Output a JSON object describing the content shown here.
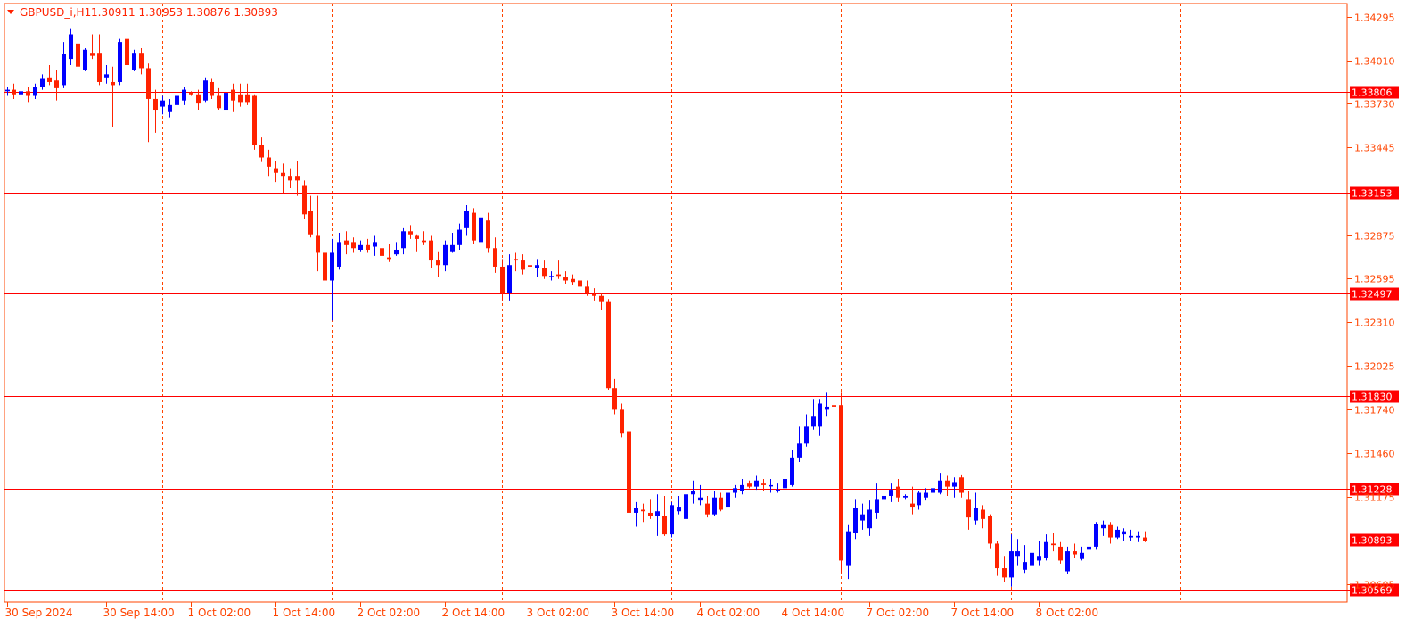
{
  "header": {
    "symbol_label": "GBPUSD_i,H1",
    "ohlc_label": "1.30911 1.30953 1.30876 1.30893"
  },
  "colors": {
    "bull": "#0000ff",
    "bear": "#ff2200",
    "level_line": "#ff0000",
    "grid": "#ff4400",
    "frame": "#ff4400",
    "axis_text": "#ff4400",
    "label_bg": "#ff0000",
    "label_text": "#ffffff"
  },
  "chart_data": {
    "type": "candlestick",
    "symbol": "GBPUSD_i",
    "timeframe": "H1",
    "ylim": [
      1.3049,
      1.3438
    ],
    "y_ticks": [
      "1.34295",
      "1.34010",
      "1.33730",
      "1.33445",
      "1.32875",
      "1.32595",
      "1.32310",
      "1.32025",
      "1.31740",
      "1.31460",
      "1.31175",
      "1.30605"
    ],
    "y_tick_values": [
      1.34295,
      1.3401,
      1.3373,
      1.33445,
      1.32875,
      1.32595,
      1.3231,
      1.32025,
      1.3174,
      1.3146,
      1.31175,
      1.30605
    ],
    "x_ticks": [
      {
        "label": "30 Sep 2024",
        "index": 0
      },
      {
        "label": "30 Sep 14:00",
        "index": 14
      },
      {
        "label": "1 Oct 02:00",
        "index": 26
      },
      {
        "label": "1 Oct 14:00",
        "index": 38
      },
      {
        "label": "2 Oct 02:00",
        "index": 50
      },
      {
        "label": "2 Oct 14:00",
        "index": 62
      },
      {
        "label": "3 Oct 02:00",
        "index": 74
      },
      {
        "label": "3 Oct 14:00",
        "index": 86
      },
      {
        "label": "4 Oct 02:00",
        "index": 98
      },
      {
        "label": "4 Oct 14:00",
        "index": 110
      },
      {
        "label": "7 Oct 02:00",
        "index": 122
      },
      {
        "label": "7 Oct 14:00",
        "index": 134
      },
      {
        "label": "8 Oct 02:00",
        "index": 146
      }
    ],
    "vertical_grid_indices": [
      22,
      46,
      70,
      94,
      118,
      142,
      166
    ],
    "levels": [
      {
        "value": 1.33806,
        "label": "1.33806"
      },
      {
        "value": 1.33153,
        "label": "1.33153"
      },
      {
        "value": 1.32497,
        "label": "1.32497"
      },
      {
        "value": 1.3183,
        "label": "1.31830"
      },
      {
        "value": 1.31228,
        "label": "1.31228"
      },
      {
        "value": 1.30569,
        "label": "1.30569"
      }
    ],
    "current_price": {
      "value": 1.30893,
      "label": "1.30893"
    },
    "candles": [
      [
        1.3381,
        1.3384,
        1.3378,
        1.3382
      ],
      [
        1.3382,
        1.3386,
        1.3376,
        1.3379
      ],
      [
        1.3379,
        1.3389,
        1.3377,
        1.3381
      ],
      [
        1.3381,
        1.3384,
        1.3374,
        1.3378
      ],
      [
        1.3378,
        1.3386,
        1.3376,
        1.3384
      ],
      [
        1.3384,
        1.3392,
        1.3382,
        1.3389
      ],
      [
        1.339,
        1.3398,
        1.3385,
        1.3387
      ],
      [
        1.3388,
        1.3395,
        1.3375,
        1.3383
      ],
      [
        1.3385,
        1.3413,
        1.3383,
        1.3405
      ],
      [
        1.3402,
        1.3422,
        1.3398,
        1.3418
      ],
      [
        1.3412,
        1.3417,
        1.3395,
        1.3397
      ],
      [
        1.3395,
        1.3409,
        1.3394,
        1.3408
      ],
      [
        1.3406,
        1.3418,
        1.3402,
        1.3404
      ],
      [
        1.3406,
        1.3418,
        1.3385,
        1.3387
      ],
      [
        1.339,
        1.3398,
        1.3386,
        1.3392
      ],
      [
        1.3387,
        1.3397,
        1.3358,
        1.3385
      ],
      [
        1.3387,
        1.3415,
        1.3385,
        1.3413
      ],
      [
        1.3415,
        1.3417,
        1.3389,
        1.3398
      ],
      [
        1.3395,
        1.3408,
        1.3394,
        1.3406
      ],
      [
        1.3406,
        1.3409,
        1.3392,
        1.3396
      ],
      [
        1.3396,
        1.3399,
        1.3348,
        1.3376
      ],
      [
        1.3376,
        1.3382,
        1.3354,
        1.3369
      ],
      [
        1.3371,
        1.3378,
        1.3366,
        1.3375
      ],
      [
        1.3368,
        1.3376,
        1.3364,
        1.3372
      ],
      [
        1.3372,
        1.3382,
        1.3371,
        1.3378
      ],
      [
        1.3375,
        1.3384,
        1.3372,
        1.3382
      ],
      [
        1.338,
        1.3381,
        1.3378,
        1.3379
      ],
      [
        1.3379,
        1.3382,
        1.3369,
        1.3373
      ],
      [
        1.3375,
        1.339,
        1.3374,
        1.3388
      ],
      [
        1.3387,
        1.3389,
        1.3376,
        1.3378
      ],
      [
        1.3378,
        1.3383,
        1.3369,
        1.337
      ],
      [
        1.3369,
        1.3384,
        1.3368,
        1.338
      ],
      [
        1.3382,
        1.3386,
        1.3368,
        1.3375
      ],
      [
        1.3379,
        1.3386,
        1.3371,
        1.3374
      ],
      [
        1.3379,
        1.3386,
        1.3372,
        1.3374
      ],
      [
        1.3378,
        1.3379,
        1.3343,
        1.3346
      ],
      [
        1.3346,
        1.3351,
        1.3335,
        1.3338
      ],
      [
        1.3338,
        1.3343,
        1.3326,
        1.3332
      ],
      [
        1.3331,
        1.3336,
        1.3322,
        1.3328
      ],
      [
        1.3328,
        1.3334,
        1.3315,
        1.3326
      ],
      [
        1.3326,
        1.3331,
        1.3318,
        1.3323
      ],
      [
        1.3326,
        1.3336,
        1.3313,
        1.3323
      ],
      [
        1.332,
        1.3323,
        1.3298,
        1.3301
      ],
      [
        1.3303,
        1.3313,
        1.3286,
        1.3288
      ],
      [
        1.3287,
        1.3313,
        1.3264,
        1.3276
      ],
      [
        1.3276,
        1.3283,
        1.3241,
        1.3258
      ],
      [
        1.3258,
        1.3285,
        1.3232,
        1.3276
      ],
      [
        1.3267,
        1.3289,
        1.3265,
        1.3283
      ],
      [
        1.3284,
        1.329,
        1.3275,
        1.3281
      ],
      [
        1.3283,
        1.3286,
        1.3276,
        1.3279
      ],
      [
        1.3278,
        1.3284,
        1.3277,
        1.3281
      ],
      [
        1.3281,
        1.3285,
        1.3276,
        1.3278
      ],
      [
        1.328,
        1.3287,
        1.3274,
        1.3283
      ],
      [
        1.3279,
        1.3286,
        1.3273,
        1.3274
      ],
      [
        1.3273,
        1.3282,
        1.327,
        1.3272
      ],
      [
        1.3275,
        1.3283,
        1.3274,
        1.3278
      ],
      [
        1.3279,
        1.3292,
        1.3275,
        1.329
      ],
      [
        1.329,
        1.3294,
        1.3285,
        1.3288
      ],
      [
        1.3287,
        1.3288,
        1.3277,
        1.3285
      ],
      [
        1.3284,
        1.329,
        1.3281,
        1.3283
      ],
      [
        1.3284,
        1.3287,
        1.3266,
        1.3271
      ],
      [
        1.3271,
        1.3277,
        1.326,
        1.3268
      ],
      [
        1.3268,
        1.3284,
        1.3264,
        1.3281
      ],
      [
        1.3277,
        1.3289,
        1.3276,
        1.3281
      ],
      [
        1.3281,
        1.3295,
        1.3278,
        1.3291
      ],
      [
        1.3292,
        1.3307,
        1.3287,
        1.3303
      ],
      [
        1.3302,
        1.3305,
        1.3282,
        1.3284
      ],
      [
        1.3283,
        1.3303,
        1.328,
        1.3299
      ],
      [
        1.3297,
        1.3302,
        1.3276,
        1.3279
      ],
      [
        1.3279,
        1.3286,
        1.3263,
        1.3267
      ],
      [
        1.3267,
        1.3272,
        1.3245,
        1.325
      ],
      [
        1.325,
        1.3275,
        1.3245,
        1.3268
      ],
      [
        1.3272,
        1.3276,
        1.3264,
        1.3271
      ],
      [
        1.3271,
        1.3275,
        1.3262,
        1.3265
      ],
      [
        1.3268,
        1.327,
        1.3257,
        1.3267
      ],
      [
        1.3266,
        1.3272,
        1.326,
        1.3268
      ],
      [
        1.3266,
        1.3271,
        1.3259,
        1.3261
      ],
      [
        1.3261,
        1.3264,
        1.3258,
        1.3261
      ],
      [
        1.3262,
        1.3271,
        1.3259,
        1.3261
      ],
      [
        1.326,
        1.3264,
        1.3256,
        1.3258
      ],
      [
        1.3259,
        1.3262,
        1.3255,
        1.3257
      ],
      [
        1.3258,
        1.3263,
        1.3252,
        1.3254
      ],
      [
        1.3254,
        1.3258,
        1.3248,
        1.325
      ],
      [
        1.3249,
        1.3253,
        1.3245,
        1.3248
      ],
      [
        1.3248,
        1.325,
        1.3239,
        1.3244
      ],
      [
        1.3244,
        1.3246,
        1.3187,
        1.3188
      ],
      [
        1.3188,
        1.3194,
        1.3171,
        1.3174
      ],
      [
        1.3174,
        1.3178,
        1.3156,
        1.3159
      ],
      [
        1.316,
        1.3162,
        1.3106,
        1.3107
      ],
      [
        1.3107,
        1.3114,
        1.3098,
        1.311
      ],
      [
        1.3109,
        1.3113,
        1.3101,
        1.3108
      ],
      [
        1.3107,
        1.3116,
        1.3103,
        1.3105
      ],
      [
        1.3105,
        1.3119,
        1.3092,
        1.3108
      ],
      [
        1.3105,
        1.3118,
        1.3092,
        1.3093
      ],
      [
        1.3093,
        1.3114,
        1.3091,
        1.3112
      ],
      [
        1.3108,
        1.3118,
        1.3106,
        1.3111
      ],
      [
        1.3103,
        1.3129,
        1.3102,
        1.3119
      ],
      [
        1.3119,
        1.3128,
        1.3113,
        1.3121
      ],
      [
        1.3115,
        1.3125,
        1.3112,
        1.3117
      ],
      [
        1.3113,
        1.3118,
        1.3104,
        1.3106
      ],
      [
        1.3106,
        1.3121,
        1.3105,
        1.3117
      ],
      [
        1.3117,
        1.312,
        1.3108,
        1.3109
      ],
      [
        1.3111,
        1.3123,
        1.311,
        1.312
      ],
      [
        1.312,
        1.3125,
        1.3117,
        1.3123
      ],
      [
        1.3121,
        1.3129,
        1.3119,
        1.3125
      ],
      [
        1.3126,
        1.3128,
        1.3123,
        1.3124
      ],
      [
        1.3124,
        1.3131,
        1.3122,
        1.3128
      ],
      [
        1.3126,
        1.3129,
        1.3121,
        1.3125
      ],
      [
        1.3125,
        1.3129,
        1.312,
        1.3125
      ],
      [
        1.3121,
        1.3126,
        1.312,
        1.3122
      ],
      [
        1.3123,
        1.3129,
        1.3119,
        1.3129
      ],
      [
        1.3125,
        1.3148,
        1.3124,
        1.3143
      ],
      [
        1.3143,
        1.3163,
        1.314,
        1.3152
      ],
      [
        1.3152,
        1.3171,
        1.315,
        1.3163
      ],
      [
        1.3163,
        1.3181,
        1.3161,
        1.317
      ],
      [
        1.3163,
        1.3181,
        1.3157,
        1.3178
      ],
      [
        1.3174,
        1.3185,
        1.317,
        1.3176
      ],
      [
        1.3177,
        1.3182,
        1.3173,
        1.3176
      ],
      [
        1.3177,
        1.3185,
        1.3068,
        1.3076
      ],
      [
        1.3073,
        1.3099,
        1.3064,
        1.3095
      ],
      [
        1.3094,
        1.3116,
        1.309,
        1.311
      ],
      [
        1.3102,
        1.3113,
        1.3096,
        1.3106
      ],
      [
        1.3097,
        1.3115,
        1.3092,
        1.3109
      ],
      [
        1.3107,
        1.3126,
        1.3103,
        1.3116
      ],
      [
        1.3116,
        1.3119,
        1.3108,
        1.3118
      ],
      [
        1.3118,
        1.3126,
        1.3114,
        1.3122
      ],
      [
        1.3124,
        1.3129,
        1.3114,
        1.3117
      ],
      [
        1.3117,
        1.3119,
        1.3116,
        1.3118
      ],
      [
        1.3113,
        1.3124,
        1.3106,
        1.3111
      ],
      [
        1.3112,
        1.3121,
        1.3109,
        1.312
      ],
      [
        1.3117,
        1.3123,
        1.3115,
        1.312
      ],
      [
        1.312,
        1.3126,
        1.3118,
        1.3123
      ],
      [
        1.312,
        1.3133,
        1.3119,
        1.3128
      ],
      [
        1.3128,
        1.3131,
        1.3118,
        1.3124
      ],
      [
        1.3124,
        1.313,
        1.3117,
        1.3127
      ],
      [
        1.313,
        1.3132,
        1.3117,
        1.312
      ],
      [
        1.3116,
        1.3121,
        1.3096,
        1.3104
      ],
      [
        1.3102,
        1.312,
        1.3099,
        1.311
      ],
      [
        1.3109,
        1.3112,
        1.3097,
        1.3103
      ],
      [
        1.3105,
        1.3106,
        1.3084,
        1.3087
      ],
      [
        1.3087,
        1.3089,
        1.3066,
        1.3071
      ],
      [
        1.3071,
        1.3079,
        1.3062,
        1.3065
      ],
      [
        1.3065,
        1.3093,
        1.3059,
        1.3082
      ],
      [
        1.3079,
        1.309,
        1.3073,
        1.3082
      ],
      [
        1.307,
        1.3086,
        1.3068,
        1.3075
      ],
      [
        1.3073,
        1.3087,
        1.3069,
        1.3081
      ],
      [
        1.3076,
        1.3089,
        1.3073,
        1.3079
      ],
      [
        1.3078,
        1.3093,
        1.3076,
        1.3088
      ],
      [
        1.3087,
        1.3094,
        1.3082,
        1.3086
      ],
      [
        1.3085,
        1.3088,
        1.3074,
        1.3076
      ],
      [
        1.3069,
        1.3085,
        1.3067,
        1.3082
      ],
      [
        1.3082,
        1.3087,
        1.3078,
        1.308
      ],
      [
        1.3077,
        1.3085,
        1.3076,
        1.3081
      ],
      [
        1.3083,
        1.3086,
        1.3082,
        1.3085
      ],
      [
        1.3085,
        1.3101,
        1.3083,
        1.31
      ],
      [
        1.3097,
        1.3102,
        1.3092,
        1.3099
      ],
      [
        1.3099,
        1.3101,
        1.3087,
        1.3091
      ],
      [
        1.3091,
        1.3098,
        1.309,
        1.3096
      ],
      [
        1.3093,
        1.3097,
        1.3089,
        1.3095
      ],
      [
        1.3091,
        1.3096,
        1.3089,
        1.3092
      ],
      [
        1.3091,
        1.3095,
        1.3088,
        1.3092
      ],
      [
        1.3091,
        1.3095,
        1.3088,
        1.3089
      ]
    ]
  }
}
